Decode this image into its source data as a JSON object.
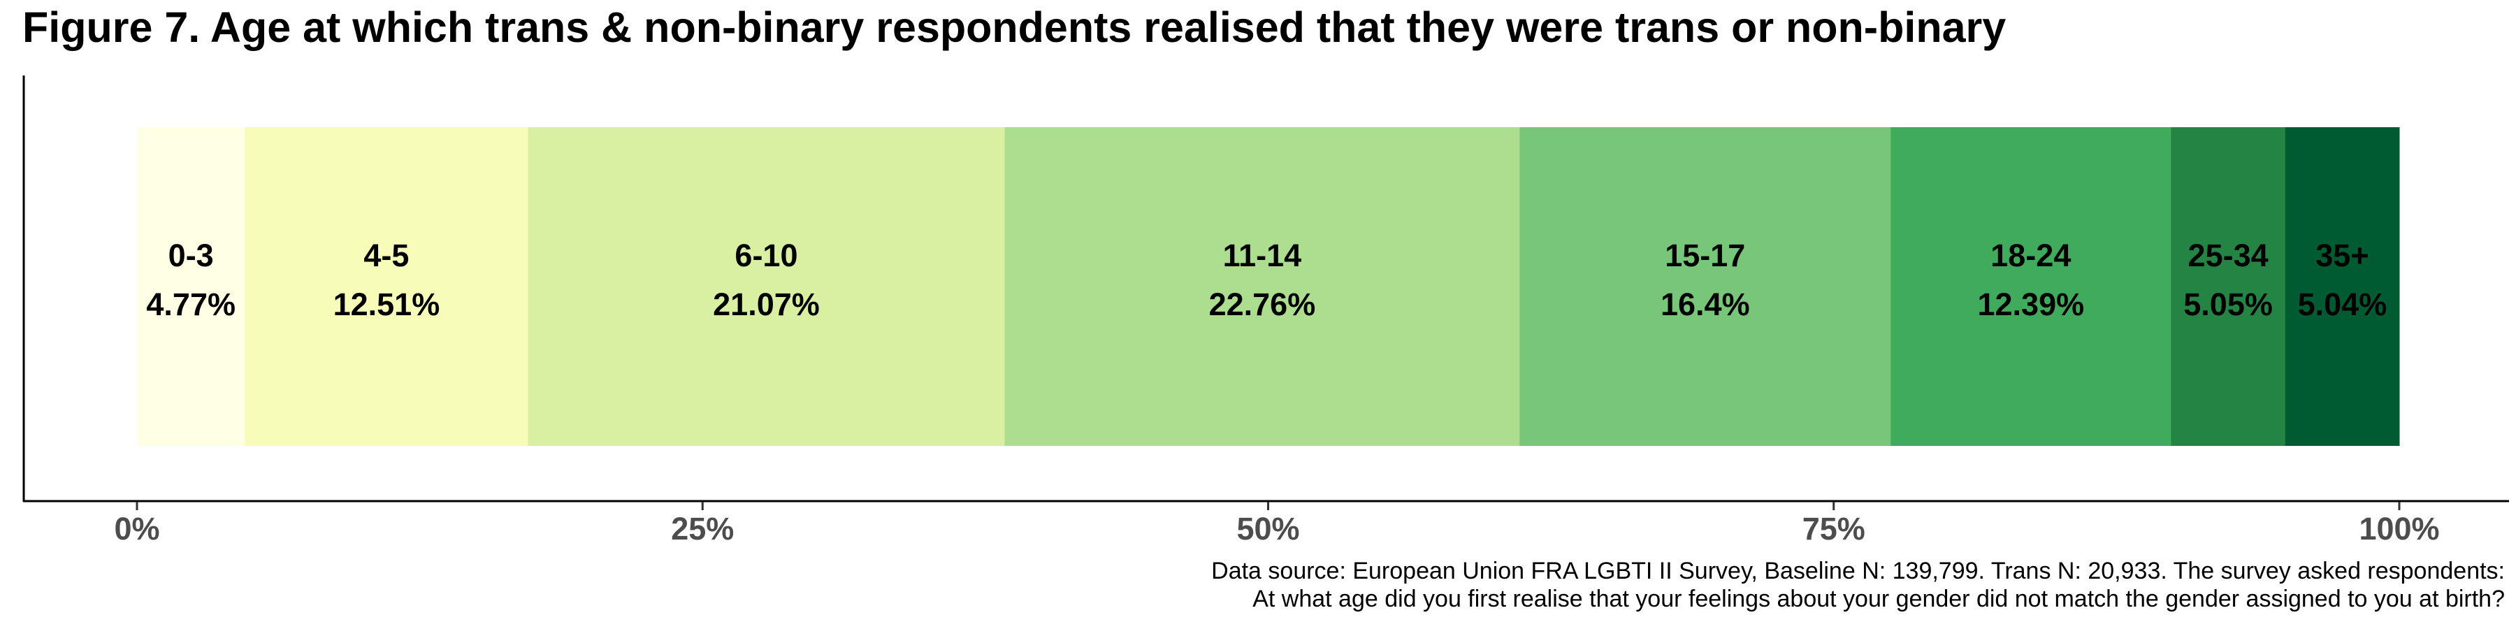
{
  "chart_data": {
    "type": "bar",
    "orientation": "horizontal",
    "stacked": true,
    "normalized": true,
    "title": "Figure 7. Age at which trans & non-binary respondents realised that they were trans or non-binary",
    "categories": [
      "0-3",
      "4-5",
      "6-10",
      "11-14",
      "15-17",
      "18-24",
      "25-34",
      "35+"
    ],
    "values": [
      4.77,
      12.51,
      21.07,
      22.76,
      16.4,
      12.39,
      5.05,
      5.04
    ],
    "value_labels": [
      "4.77%",
      "12.51%",
      "21.07%",
      "22.76%",
      "16.4%",
      "12.39%",
      "5.05%",
      "5.04%"
    ],
    "colors": [
      "#ffffe5",
      "#f7fcb9",
      "#d9f0a3",
      "#addd8e",
      "#78c679",
      "#41ab5d",
      "#238443",
      "#005a32"
    ],
    "xlim": [
      0,
      100
    ],
    "x_ticks": [
      0,
      25,
      50,
      75,
      100
    ],
    "x_tick_labels": [
      "0%",
      "25%",
      "50%",
      "75%",
      "100%"
    ],
    "xlabel": "",
    "ylabel": "",
    "grid": false,
    "legend": "none",
    "caption": [
      "Data source: European Union FRA LGBTI II Survey, Baseline N: 139,799. Trans N: 20,933. The survey asked respondents:",
      "At what age did you first realise that your feelings about your gender did not match the gender assigned to you at birth?"
    ]
  }
}
